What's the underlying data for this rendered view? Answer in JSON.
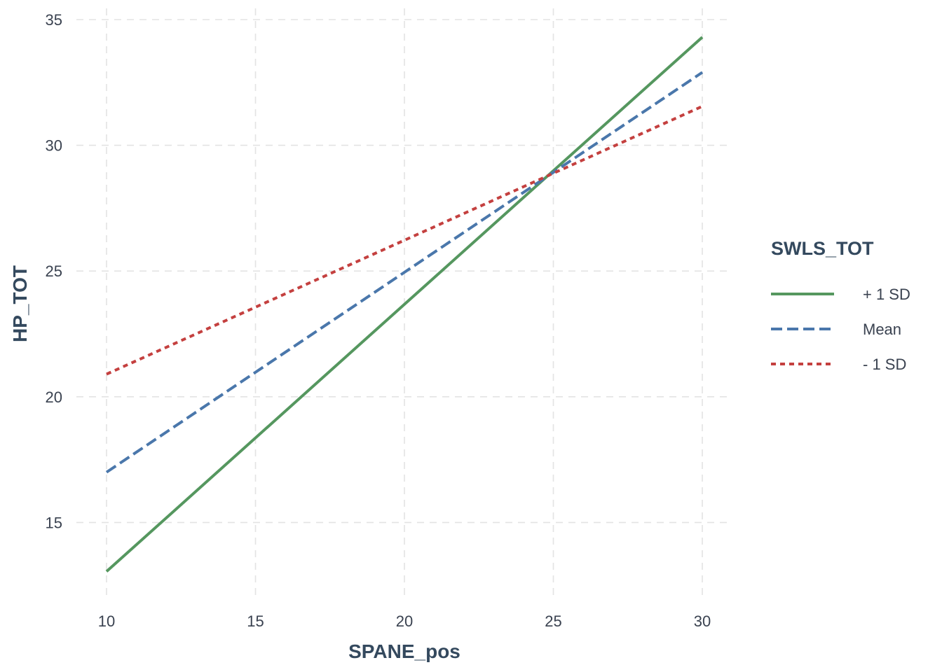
{
  "chart_data": {
    "type": "line",
    "title": "",
    "xlabel": "SPANE_pos",
    "ylabel": "HP_TOT",
    "xlim": [
      10,
      30
    ],
    "ylim": [
      12,
      35
    ],
    "x_ticks": [
      10,
      15,
      20,
      25,
      30
    ],
    "y_ticks": [
      15,
      20,
      25,
      30,
      35
    ],
    "grid": true,
    "grid_style": "dashed",
    "legend": {
      "title": "SWLS_TOT",
      "placement": "right"
    },
    "x": [
      10,
      30
    ],
    "series": [
      {
        "name": "+ 1 SD",
        "values": [
          13.05,
          34.3
        ],
        "color": "#55975f",
        "dash": "solid"
      },
      {
        "name": "Mean",
        "values": [
          17.0,
          32.9
        ],
        "color": "#4a77ab",
        "dash": "dashed"
      },
      {
        "name": "- 1 SD",
        "values": [
          20.9,
          31.55
        ],
        "color": "#c4403f",
        "dash": "dotted"
      }
    ]
  }
}
